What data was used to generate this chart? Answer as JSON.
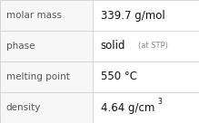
{
  "rows": [
    {
      "label": "molar mass",
      "value": "339.7 g/mol",
      "superscript": null,
      "extra": null
    },
    {
      "label": "phase",
      "value": "solid",
      "superscript": null,
      "extra": "(at STP)"
    },
    {
      "label": "melting point",
      "value": "550 °C",
      "superscript": null,
      "extra": null
    },
    {
      "label": "density",
      "value": "4.64 g/cm",
      "superscript": "3",
      "extra": null
    }
  ],
  "col_split": 0.465,
  "background_color": "#ffffff",
  "table_bg": "#f5f5f5",
  "border_color": "#d0d0d0",
  "label_color": "#555555",
  "value_color": "#111111",
  "extra_color": "#888888",
  "label_fontsize": 7.5,
  "value_fontsize": 8.5,
  "extra_fontsize": 6.0,
  "super_fontsize": 5.5
}
